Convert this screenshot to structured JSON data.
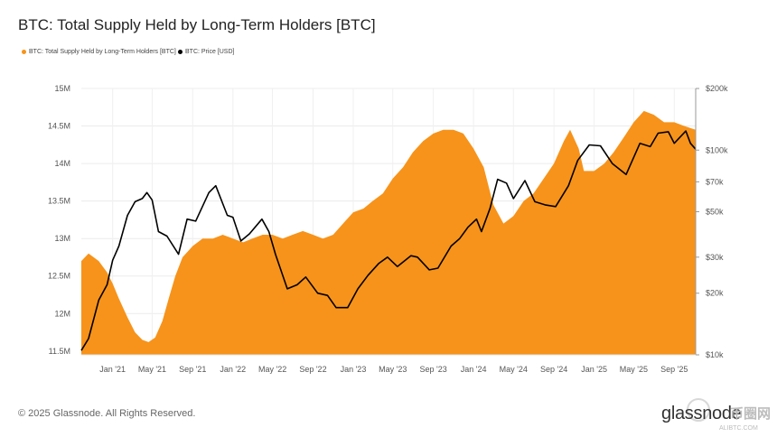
{
  "chart_data": {
    "type": "area",
    "title": "BTC: Total Supply Held by Long-Term Holders [BTC]",
    "legend": [
      "BTC: Total Supply Held by Long-Term Holders [BTC]",
      "BTC: Price [USD]"
    ],
    "legend_placement": "top-left",
    "x_tick_labels": [
      "Jan '21",
      "May '21",
      "Sep '21",
      "Jan '22",
      "May '22",
      "Sep '22",
      "Jan '23",
      "May '23",
      "Sep '23",
      "Jan '24",
      "May '24",
      "Sep '24",
      "Jan '25",
      "May '25",
      "Sep '25"
    ],
    "x_range": [
      "2020-09-28",
      "2025-11-05"
    ],
    "y_left": {
      "ylim": [
        11.45,
        15.0
      ],
      "ticks": [
        11.5,
        12,
        12.5,
        13,
        13.5,
        14,
        14.5,
        15
      ],
      "tick_labels": [
        "11.5M",
        "12M",
        "12.5M",
        "13M",
        "13.5M",
        "14M",
        "14.5M",
        "15M"
      ],
      "unit": "M BTC"
    },
    "y_right": {
      "scale": "log",
      "ylim": [
        10000,
        200000
      ],
      "ticks": [
        10000,
        20000,
        30000,
        50000,
        70000,
        100000,
        200000
      ],
      "tick_labels": [
        "$10k",
        "$20k",
        "$30k",
        "$50k",
        "$70k",
        "$100k",
        "$200k"
      ]
    },
    "grid": true,
    "series": [
      {
        "name": "BTC: Total Supply Held by Long-Term Holders [BTC]",
        "axis": "left",
        "color": "#f7931a",
        "points": [
          [
            "2020-09-28",
            12.7
          ],
          [
            "2020-10-20",
            12.8
          ],
          [
            "2020-11-20",
            12.7
          ],
          [
            "2020-12-15",
            12.55
          ],
          [
            "2021-01-01",
            12.4
          ],
          [
            "2021-01-20",
            12.2
          ],
          [
            "2021-02-15",
            11.95
          ],
          [
            "2021-03-10",
            11.75
          ],
          [
            "2021-04-01",
            11.65
          ],
          [
            "2021-04-20",
            11.62
          ],
          [
            "2021-05-10",
            11.68
          ],
          [
            "2021-06-01",
            11.9
          ],
          [
            "2021-06-20",
            12.2
          ],
          [
            "2021-07-10",
            12.5
          ],
          [
            "2021-08-01",
            12.75
          ],
          [
            "2021-09-01",
            12.9
          ],
          [
            "2021-10-01",
            13.0
          ],
          [
            "2021-11-01",
            13.0
          ],
          [
            "2021-12-01",
            13.05
          ],
          [
            "2022-01-01",
            13.0
          ],
          [
            "2022-02-01",
            12.95
          ],
          [
            "2022-03-01",
            13.0
          ],
          [
            "2022-04-01",
            13.05
          ],
          [
            "2022-05-01",
            13.05
          ],
          [
            "2022-06-01",
            13.0
          ],
          [
            "2022-07-01",
            13.05
          ],
          [
            "2022-08-01",
            13.1
          ],
          [
            "2022-09-01",
            13.05
          ],
          [
            "2022-10-01",
            13.0
          ],
          [
            "2022-11-01",
            13.05
          ],
          [
            "2022-12-01",
            13.2
          ],
          [
            "2023-01-01",
            13.35
          ],
          [
            "2023-02-01",
            13.4
          ],
          [
            "2023-03-01",
            13.5
          ],
          [
            "2023-04-01",
            13.6
          ],
          [
            "2023-05-01",
            13.8
          ],
          [
            "2023-06-01",
            13.95
          ],
          [
            "2023-07-01",
            14.15
          ],
          [
            "2023-08-01",
            14.3
          ],
          [
            "2023-09-01",
            14.4
          ],
          [
            "2023-10-01",
            14.45
          ],
          [
            "2023-11-01",
            14.45
          ],
          [
            "2023-12-01",
            14.4
          ],
          [
            "2024-01-01",
            14.2
          ],
          [
            "2024-02-01",
            13.95
          ],
          [
            "2024-03-01",
            13.45
          ],
          [
            "2024-04-01",
            13.2
          ],
          [
            "2024-05-01",
            13.3
          ],
          [
            "2024-06-01",
            13.5
          ],
          [
            "2024-07-01",
            13.6
          ],
          [
            "2024-08-01",
            13.8
          ],
          [
            "2024-09-01",
            14.0
          ],
          [
            "2024-10-01",
            14.3
          ],
          [
            "2024-10-20",
            14.45
          ],
          [
            "2024-11-15",
            14.2
          ],
          [
            "2024-12-01",
            13.9
          ],
          [
            "2025-01-01",
            13.9
          ],
          [
            "2025-02-01",
            14.0
          ],
          [
            "2025-03-01",
            14.15
          ],
          [
            "2025-04-01",
            14.35
          ],
          [
            "2025-05-01",
            14.55
          ],
          [
            "2025-06-01",
            14.7
          ],
          [
            "2025-07-01",
            14.65
          ],
          [
            "2025-08-01",
            14.55
          ],
          [
            "2025-09-01",
            14.55
          ],
          [
            "2025-10-01",
            14.5
          ],
          [
            "2025-11-05",
            14.45
          ]
        ]
      },
      {
        "name": "BTC: Price [USD]",
        "axis": "right",
        "color": "#000000",
        "points": [
          [
            "2020-09-28",
            10500
          ],
          [
            "2020-10-20",
            12000
          ],
          [
            "2020-11-20",
            18500
          ],
          [
            "2020-12-15",
            22000
          ],
          [
            "2021-01-01",
            29000
          ],
          [
            "2021-01-20",
            34000
          ],
          [
            "2021-02-15",
            48000
          ],
          [
            "2021-03-10",
            56000
          ],
          [
            "2021-04-01",
            58000
          ],
          [
            "2021-04-15",
            62000
          ],
          [
            "2021-05-01",
            57000
          ],
          [
            "2021-05-20",
            40000
          ],
          [
            "2021-06-15",
            38000
          ],
          [
            "2021-07-20",
            31000
          ],
          [
            "2021-08-15",
            46000
          ],
          [
            "2021-09-10",
            45000
          ],
          [
            "2021-10-20",
            62000
          ],
          [
            "2021-11-10",
            67000
          ],
          [
            "2021-12-15",
            48000
          ],
          [
            "2022-01-01",
            47000
          ],
          [
            "2022-01-25",
            36000
          ],
          [
            "2022-02-20",
            39000
          ],
          [
            "2022-03-30",
            46000
          ],
          [
            "2022-04-20",
            40000
          ],
          [
            "2022-05-10",
            31000
          ],
          [
            "2022-06-15",
            21000
          ],
          [
            "2022-07-15",
            22000
          ],
          [
            "2022-08-10",
            24000
          ],
          [
            "2022-09-15",
            20000
          ],
          [
            "2022-10-15",
            19500
          ],
          [
            "2022-11-10",
            17000
          ],
          [
            "2022-12-15",
            17000
          ],
          [
            "2023-01-15",
            21000
          ],
          [
            "2023-02-15",
            24500
          ],
          [
            "2023-03-20",
            28000
          ],
          [
            "2023-04-15",
            30000
          ],
          [
            "2023-05-15",
            27000
          ],
          [
            "2023-06-25",
            30500
          ],
          [
            "2023-07-15",
            30000
          ],
          [
            "2023-08-20",
            26000
          ],
          [
            "2023-09-15",
            26500
          ],
          [
            "2023-10-25",
            34000
          ],
          [
            "2023-11-20",
            37000
          ],
          [
            "2023-12-15",
            42000
          ],
          [
            "2024-01-10",
            46000
          ],
          [
            "2024-01-25",
            40000
          ],
          [
            "2024-02-20",
            52000
          ],
          [
            "2024-03-14",
            72000
          ],
          [
            "2024-04-10",
            69000
          ],
          [
            "2024-05-01",
            58000
          ],
          [
            "2024-06-05",
            71000
          ],
          [
            "2024-07-05",
            56000
          ],
          [
            "2024-08-05",
            54000
          ],
          [
            "2024-09-06",
            53000
          ],
          [
            "2024-10-15",
            67000
          ],
          [
            "2024-11-12",
            89000
          ],
          [
            "2024-12-17",
            106000
          ],
          [
            "2025-01-20",
            105000
          ],
          [
            "2025-02-25",
            86000
          ],
          [
            "2025-04-08",
            76000
          ],
          [
            "2025-05-20",
            108000
          ],
          [
            "2025-06-20",
            104000
          ],
          [
            "2025-07-14",
            121000
          ],
          [
            "2025-08-14",
            123000
          ],
          [
            "2025-09-01",
            108000
          ],
          [
            "2025-10-06",
            124000
          ],
          [
            "2025-10-20",
            108000
          ],
          [
            "2025-11-05",
            101000
          ]
        ]
      }
    ]
  },
  "footer": {
    "copyright": "© 2025 Glassnode. All Rights Reserved.",
    "brand": "glassnode",
    "watermark_cn": "币圈网",
    "watermark_url": "ALIBTC.COM"
  }
}
